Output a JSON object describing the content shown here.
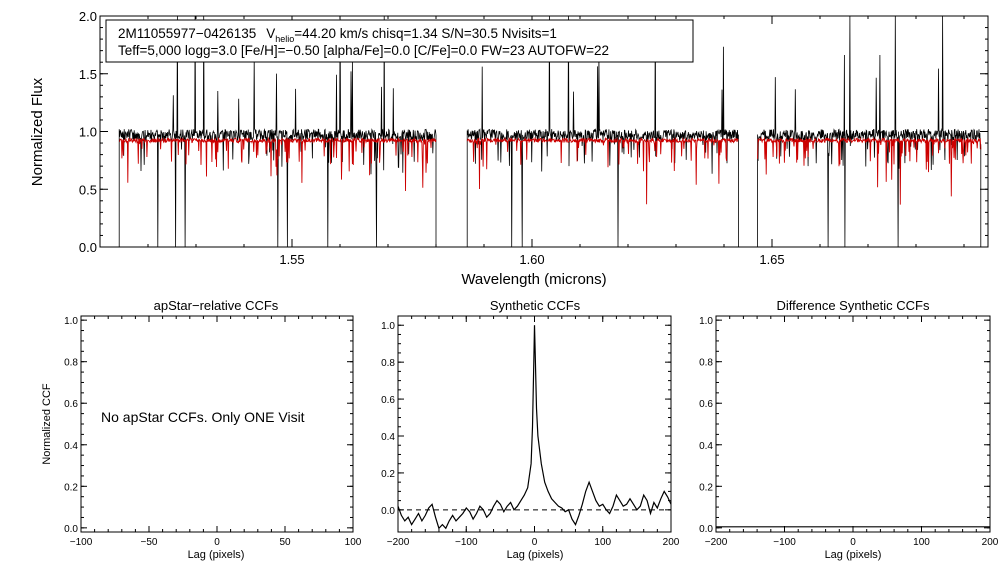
{
  "chart_data": [
    {
      "type": "line",
      "xlabel": "Wavelength (microns)",
      "ylabel": "Normalized Flux",
      "xlim": [
        1.51,
        1.695
      ],
      "ylim": [
        0.0,
        2.0
      ],
      "x_ticks": [
        "1.55",
        "1.60",
        "1.65"
      ],
      "x_tick_values": [
        1.55,
        1.6,
        1.65
      ],
      "y_ticks": [
        "0.0",
        "0.5",
        "1.0",
        "1.5",
        "2.0"
      ],
      "y_tick_values": [
        0.0,
        0.5,
        1.0,
        1.5,
        2.0
      ],
      "info_box": {
        "star_id": "2M11055977−0426135",
        "v_prefix": "V",
        "v_sub": "helio",
        "v_rest": "=44.20 km/s  chisq=1.34  S/N=30.5  Nvisits=1",
        "line2": "Teff=5,000 logg=3.0 [Fe/H]=−0.50 [alpha/Fe]=0.0 [C/Fe]=0.0 FW=23 AUTOFW=22"
      },
      "chips": [
        [
          1.514,
          1.58
        ],
        [
          1.5865,
          1.643
        ],
        [
          1.647,
          1.6935
        ]
      ],
      "series": [
        {
          "name": "observed spectrum",
          "color": "#000000",
          "continuum": 0.97
        },
        {
          "name": "synthetic model",
          "color": "#cc0000",
          "continuum": 0.94
        }
      ]
    },
    {
      "type": "line",
      "title": "apStar−relative CCFs",
      "xlabel": "Lag (pixels)",
      "ylabel": "Normalized CCF",
      "xlim": [
        -100,
        100
      ],
      "ylim": [
        -0.02,
        1.02
      ],
      "x_ticks": [
        "−100",
        "−50",
        "0",
        "50",
        "100"
      ],
      "x_tick_values": [
        -100,
        -50,
        0,
        50,
        100
      ],
      "y_ticks": [
        "0.0",
        "0.2",
        "0.4",
        "0.6",
        "0.8",
        "1.0"
      ],
      "y_tick_values": [
        0.0,
        0.2,
        0.4,
        0.6,
        0.8,
        1.0
      ],
      "annotation": "No apStar CCFs.  Only ONE Visit"
    },
    {
      "type": "line",
      "title": "Synthetic CCFs",
      "xlabel": "Lag (pixels)",
      "xlim": [
        -200,
        200
      ],
      "ylim": [
        -0.12,
        1.05
      ],
      "x_ticks": [
        "−200",
        "−100",
        "0",
        "100",
        "200"
      ],
      "x_tick_values": [
        -200,
        -100,
        0,
        100,
        200
      ],
      "y_ticks": [
        "0.0",
        "0.2",
        "0.4",
        "0.6",
        "0.8",
        "1.0"
      ],
      "y_tick_values": [
        0.0,
        0.2,
        0.4,
        0.6,
        0.8,
        1.0
      ],
      "zero_line": 0.0,
      "series": [
        {
          "name": "synthetic CCF",
          "x": [
            -200,
            -195,
            -190,
            -185,
            -180,
            -175,
            -170,
            -165,
            -160,
            -155,
            -150,
            -145,
            -140,
            -135,
            -130,
            -125,
            -120,
            -115,
            -110,
            -105,
            -100,
            -95,
            -90,
            -85,
            -80,
            -75,
            -70,
            -65,
            -60,
            -55,
            -50,
            -45,
            -40,
            -35,
            -30,
            -25,
            -20,
            -15,
            -10,
            -5,
            -3,
            -1,
            0,
            1,
            3,
            5,
            10,
            15,
            20,
            25,
            30,
            35,
            40,
            45,
            50,
            55,
            60,
            65,
            70,
            75,
            80,
            85,
            90,
            95,
            100,
            105,
            110,
            115,
            120,
            125,
            130,
            135,
            140,
            145,
            150,
            155,
            160,
            165,
            170,
            175,
            180,
            185,
            190,
            195,
            200
          ],
          "y": [
            0.02,
            -0.03,
            -0.06,
            -0.04,
            -0.08,
            -0.05,
            -0.02,
            -0.06,
            -0.03,
            0.01,
            0.03,
            -0.04,
            -0.1,
            -0.08,
            -0.1,
            -0.06,
            -0.03,
            -0.06,
            -0.04,
            -0.02,
            0.01,
            -0.01,
            -0.05,
            -0.02,
            0.02,
            0.0,
            -0.04,
            -0.02,
            0.02,
            0.05,
            0.03,
            -0.01,
            0.02,
            0.04,
            0.0,
            0.02,
            0.05,
            0.08,
            0.12,
            0.25,
            0.45,
            0.8,
            1.0,
            0.85,
            0.55,
            0.4,
            0.25,
            0.15,
            0.1,
            0.06,
            0.04,
            0.02,
            0.01,
            -0.01,
            0.0,
            -0.05,
            -0.08,
            -0.03,
            0.03,
            0.1,
            0.15,
            0.1,
            0.05,
            0.02,
            0.03,
            0.0,
            -0.02,
            0.02,
            0.08,
            0.05,
            0.02,
            0.03,
            0.06,
            0.03,
            0.0,
            0.02,
            0.08,
            0.05,
            -0.02,
            0.04,
            0.01,
            0.06,
            0.1,
            0.07,
            0.03
          ]
        }
      ]
    },
    {
      "type": "line",
      "title": "Difference Synthetic CCFs",
      "xlabel": "Lag (pixels)",
      "xlim": [
        -200,
        200
      ],
      "ylim": [
        -0.02,
        1.02
      ],
      "x_ticks": [
        "−200",
        "−100",
        "0",
        "100",
        "200"
      ],
      "x_tick_values": [
        -200,
        -100,
        0,
        100,
        200
      ],
      "y_ticks": [
        "0.0",
        "0.2",
        "0.4",
        "0.6",
        "0.8",
        "1.0"
      ],
      "y_tick_values": [
        0.0,
        0.2,
        0.4,
        0.6,
        0.8,
        1.0
      ],
      "series": [
        {
          "name": "difference CCF",
          "x": [
            -200,
            200
          ],
          "y": [
            0.0,
            0.0
          ]
        }
      ]
    }
  ]
}
